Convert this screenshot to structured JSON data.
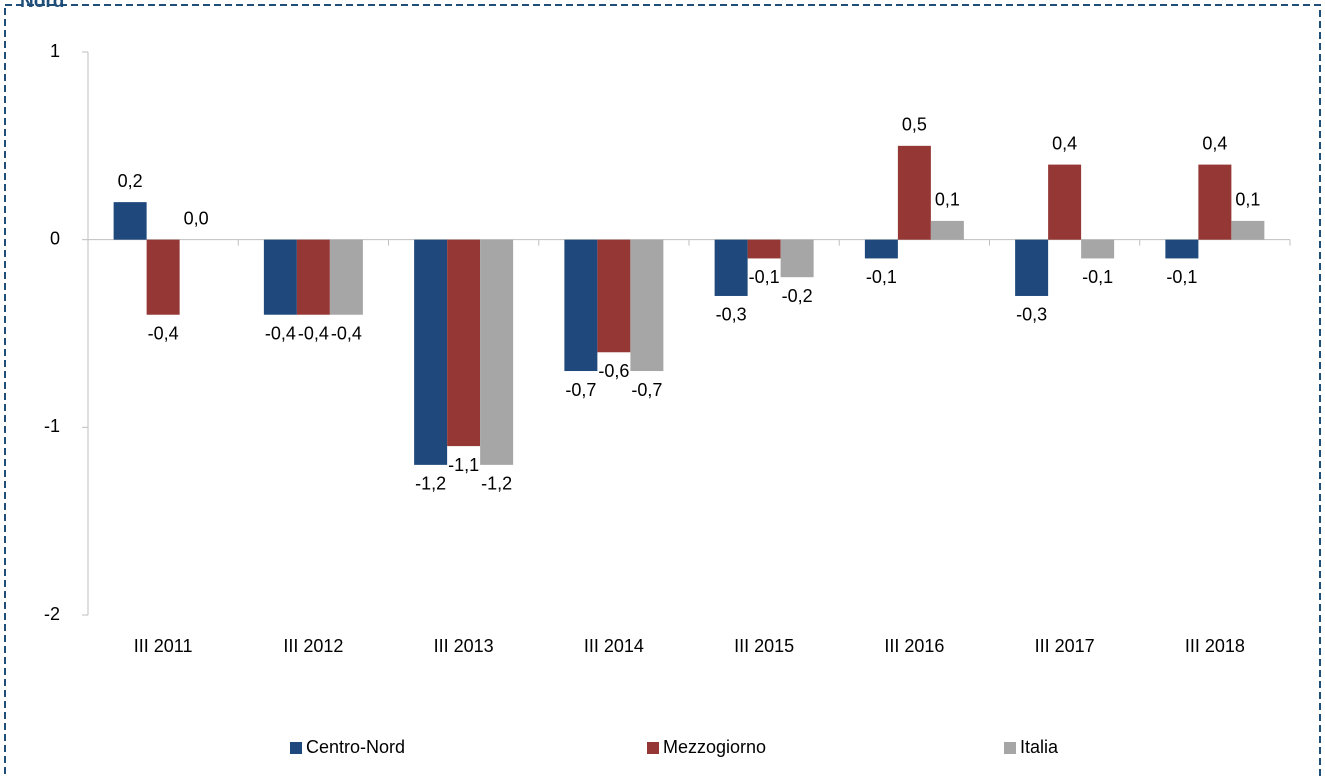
{
  "chart_data": {
    "type": "bar",
    "title": "Nord",
    "categories": [
      "III 2011",
      "III 2012",
      "III 2013",
      "III 2014",
      "III 2015",
      "III 2016",
      "III 2017",
      "III 2018"
    ],
    "series": [
      {
        "name": "Centro-Nord",
        "color": "#1f497d",
        "values": [
          0.2,
          -0.4,
          -1.2,
          -0.7,
          -0.3,
          -0.1,
          -0.3,
          -0.1
        ],
        "value_labels": [
          "0,2",
          "-0,4",
          "-1,2",
          "-0,7",
          "-0,3",
          "-0,1",
          "-0,3",
          "-0,1"
        ]
      },
      {
        "name": "Mezzogiorno",
        "color": "#953735",
        "values": [
          -0.4,
          -0.4,
          -1.1,
          -0.6,
          -0.1,
          0.5,
          0.4,
          0.4
        ],
        "value_labels": [
          "-0,4",
          "-0,4",
          "-1,1",
          "-0,6",
          "-0,1",
          "0,5",
          "0,4",
          "0,4"
        ]
      },
      {
        "name": "Italia",
        "color": "#a6a6a6",
        "values": [
          0.0,
          -0.4,
          -1.2,
          -0.7,
          -0.2,
          0.1,
          -0.1,
          0.1
        ],
        "value_labels": [
          "0,0",
          "-0,4",
          "-1,2",
          "-0,7",
          "-0,2",
          "0,1",
          "-0,1",
          "0,1"
        ]
      }
    ],
    "ylim": [
      -2,
      1
    ],
    "yticks": [
      -2,
      -1,
      0,
      1
    ],
    "grid": false,
    "legend": "bottom"
  }
}
